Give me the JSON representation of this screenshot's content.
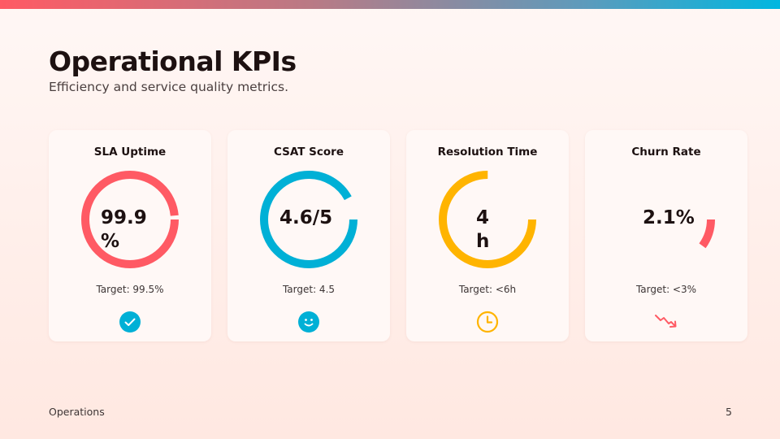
{
  "slide": {
    "title": "Operational KPIs",
    "subtitle": "Efficiency and service quality metrics.",
    "footer_left": "Operations",
    "page_number": "5"
  },
  "kpis": [
    {
      "title": "SLA Uptime",
      "value": "99.9\n%",
      "target": "Target: 99.5%",
      "color": "#ff5a64",
      "ring_fraction": 0.985,
      "icon": "check-circle-icon"
    },
    {
      "title": "CSAT Score",
      "value": "4.6/5",
      "target": "Target: 4.5",
      "color": "#00b0d6",
      "ring_fraction": 0.92,
      "icon": "smiley-face-icon"
    },
    {
      "title": "Resolution Time",
      "value": "4\nh",
      "target": "Target: <6h",
      "color": "#ffb400",
      "ring_fraction": 0.75,
      "icon": "clock-icon"
    },
    {
      "title": "Churn Rate",
      "value": "2.1%",
      "target": "Target: <3%",
      "color": "#ff5a64",
      "ring_fraction": 0.1,
      "icon": "trend-down-icon"
    }
  ]
}
